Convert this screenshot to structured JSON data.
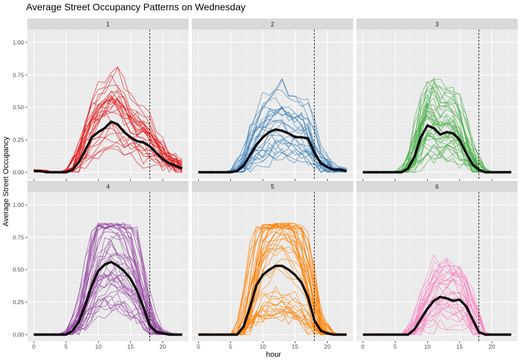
{
  "chart_data": {
    "type": "line",
    "title": "Average Street Occupancy Patterns on Wednesday",
    "xlabel": "hour",
    "ylabel": "Average Street Occupancy",
    "xlim": [
      -1,
      24
    ],
    "ylim": [
      -0.05,
      1.1
    ],
    "x_ticks": [
      0,
      5,
      10,
      15,
      20
    ],
    "x_tick_labels": [
      "0",
      "5",
      "10",
      "15",
      "20"
    ],
    "y_ticks": [
      0,
      0.25,
      0.5,
      0.75,
      1.0
    ],
    "y_tick_labels": [
      "0.00",
      "0.25",
      "0.50",
      "0.75",
      "1.00"
    ],
    "vline_x": 18,
    "grid": true,
    "hours": [
      0,
      1,
      2,
      3,
      4,
      5,
      6,
      7,
      8,
      9,
      10,
      11,
      12,
      13,
      14,
      15,
      16,
      17,
      18,
      19,
      20,
      21,
      22,
      23
    ],
    "panels": [
      {
        "label": "1",
        "color": "#E41A1C",
        "n_lines": 28,
        "mean": [
          0.01,
          0.01,
          0.0,
          0.0,
          0.0,
          0.0,
          0.02,
          0.08,
          0.17,
          0.27,
          0.31,
          0.34,
          0.39,
          0.37,
          0.31,
          0.27,
          0.24,
          0.23,
          0.2,
          0.15,
          0.1,
          0.07,
          0.05,
          0.03
        ]
      },
      {
        "label": "2",
        "color": "#377EB8",
        "n_lines": 26,
        "mean": [
          0.0,
          0.0,
          0.0,
          0.0,
          0.0,
          0.0,
          0.01,
          0.05,
          0.13,
          0.21,
          0.27,
          0.31,
          0.33,
          0.32,
          0.3,
          0.27,
          0.27,
          0.26,
          0.15,
          0.07,
          0.04,
          0.02,
          0.02,
          0.01
        ]
      },
      {
        "label": "3",
        "color": "#4DAF4A",
        "n_lines": 40,
        "mean": [
          0.0,
          0.0,
          0.0,
          0.0,
          0.0,
          0.0,
          0.0,
          0.03,
          0.12,
          0.27,
          0.36,
          0.34,
          0.29,
          0.31,
          0.3,
          0.25,
          0.15,
          0.06,
          0.02,
          0.0,
          0.0,
          0.0,
          0.0,
          0.0
        ]
      },
      {
        "label": "4",
        "color": "#984EA3",
        "n_lines": 45,
        "mean": [
          0.0,
          0.0,
          0.0,
          0.0,
          0.0,
          0.0,
          0.03,
          0.1,
          0.23,
          0.38,
          0.49,
          0.54,
          0.56,
          0.53,
          0.49,
          0.43,
          0.34,
          0.21,
          0.07,
          0.02,
          0.01,
          0.0,
          0.0,
          0.0
        ]
      },
      {
        "label": "5",
        "color": "#FF7F00",
        "n_lines": 45,
        "mean": [
          0.0,
          0.0,
          0.0,
          0.0,
          0.0,
          0.0,
          0.0,
          0.06,
          0.21,
          0.38,
          0.46,
          0.5,
          0.53,
          0.53,
          0.5,
          0.46,
          0.4,
          0.29,
          0.11,
          0.03,
          0.01,
          0.0,
          0.0,
          0.0
        ]
      },
      {
        "label": "6",
        "color": "#F781BF",
        "n_lines": 32,
        "mean": [
          0.0,
          0.0,
          0.0,
          0.0,
          0.0,
          0.0,
          0.0,
          0.0,
          0.04,
          0.12,
          0.2,
          0.26,
          0.29,
          0.28,
          0.26,
          0.27,
          0.22,
          0.12,
          0.02,
          0.0,
          0.0,
          0.0,
          0.0,
          0.0
        ]
      }
    ]
  }
}
